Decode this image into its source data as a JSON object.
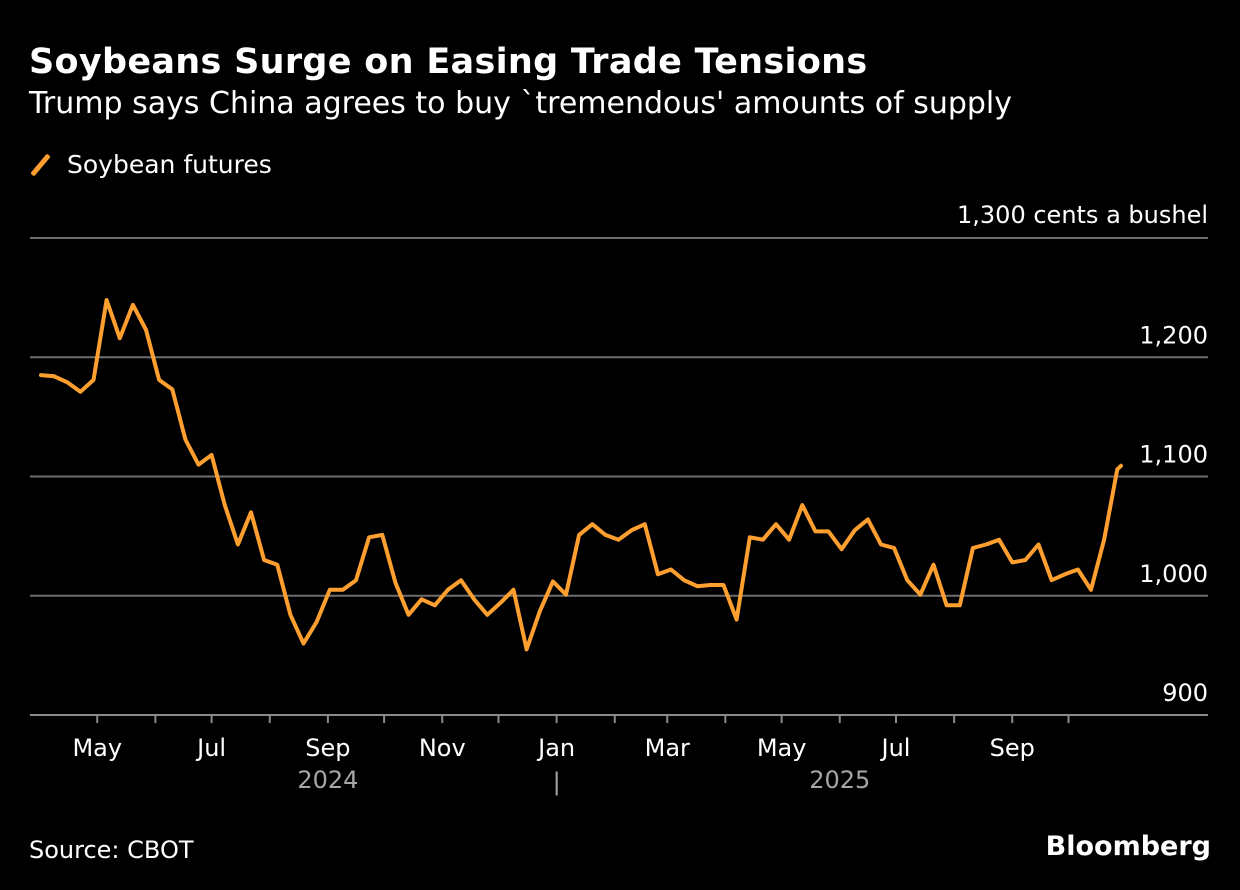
{
  "title": "Soybeans Surge on Easing Trade Tensions",
  "subtitle": "Trump says China agrees to buy `tremendous' amounts of supply",
  "source": "Source: CBOT",
  "logo": "Bloomberg",
  "colors": {
    "series": "#ff9f2f",
    "background": "#000000",
    "grid": "#6e6e6e",
    "text": "#ffffff",
    "year_label": "#a6a6a6"
  },
  "chart_data": {
    "type": "line",
    "legend": {
      "position": "top-left",
      "entries": [
        "Soybean futures"
      ]
    },
    "y_unit_label": "1,300 cents a bushel",
    "ylim": [
      900,
      1300
    ],
    "y_ticks": [
      {
        "value": 1300,
        "label": "1,300"
      },
      {
        "value": 1200,
        "label": "1,200"
      },
      {
        "value": 1100,
        "label": "1,100"
      },
      {
        "value": 1000,
        "label": "1,000"
      },
      {
        "value": 900,
        "label": "900"
      }
    ],
    "grid": true,
    "x_ticks": [
      {
        "date": "2024-05-01",
        "label": "May"
      },
      {
        "date": "2024-06-01",
        "label": ""
      },
      {
        "date": "2024-07-01",
        "label": "Jul"
      },
      {
        "date": "2024-08-01",
        "label": ""
      },
      {
        "date": "2024-09-01",
        "label": "Sep"
      },
      {
        "date": "2024-10-01",
        "label": ""
      },
      {
        "date": "2024-11-01",
        "label": "Nov"
      },
      {
        "date": "2024-12-01",
        "label": ""
      },
      {
        "date": "2025-01-01",
        "label": "Jan"
      },
      {
        "date": "2025-02-01",
        "label": ""
      },
      {
        "date": "2025-03-01",
        "label": "Mar"
      },
      {
        "date": "2025-04-01",
        "label": ""
      },
      {
        "date": "2025-05-01",
        "label": "May"
      },
      {
        "date": "2025-06-01",
        "label": ""
      },
      {
        "date": "2025-07-01",
        "label": "Jul"
      },
      {
        "date": "2025-08-01",
        "label": ""
      },
      {
        "date": "2025-09-01",
        "label": "Sep"
      },
      {
        "date": "2025-10-01",
        "label": ""
      }
    ],
    "year_labels": [
      {
        "label": "2024",
        "date": "2024-09-01"
      },
      {
        "label": "2025",
        "date": "2025-06-01"
      }
    ],
    "year_separator": {
      "label": "|",
      "date": "2025-01-01"
    },
    "series": [
      {
        "name": "Soybean futures",
        "dates": [
          "2024-04-01",
          "2024-04-08",
          "2024-04-15",
          "2024-04-22",
          "2024-04-29",
          "2024-05-06",
          "2024-05-13",
          "2024-05-20",
          "2024-05-27",
          "2024-06-03",
          "2024-06-10",
          "2024-06-17",
          "2024-06-24",
          "2024-07-01",
          "2024-07-08",
          "2024-07-15",
          "2024-07-22",
          "2024-07-29",
          "2024-08-05",
          "2024-08-12",
          "2024-08-19",
          "2024-08-26",
          "2024-09-02",
          "2024-09-09",
          "2024-09-16",
          "2024-09-23",
          "2024-09-30",
          "2024-10-07",
          "2024-10-14",
          "2024-10-21",
          "2024-10-28",
          "2024-11-04",
          "2024-11-11",
          "2024-11-18",
          "2024-11-25",
          "2024-12-02",
          "2024-12-09",
          "2024-12-16",
          "2024-12-23",
          "2024-12-30",
          "2025-01-06",
          "2025-01-13",
          "2025-01-20",
          "2025-01-27",
          "2025-02-03",
          "2025-02-10",
          "2025-02-17",
          "2025-02-24",
          "2025-03-03",
          "2025-03-10",
          "2025-03-17",
          "2025-03-24",
          "2025-03-31",
          "2025-04-07",
          "2025-04-14",
          "2025-04-21",
          "2025-04-28",
          "2025-05-05",
          "2025-05-12",
          "2025-05-19",
          "2025-05-26",
          "2025-06-02",
          "2025-06-09",
          "2025-06-16",
          "2025-06-23",
          "2025-06-30",
          "2025-07-07",
          "2025-07-14",
          "2025-07-21",
          "2025-07-28",
          "2025-08-04",
          "2025-08-11",
          "2025-08-18",
          "2025-08-25",
          "2025-09-01",
          "2025-09-08",
          "2025-09-15",
          "2025-09-22",
          "2025-09-29",
          "2025-10-06",
          "2025-10-13",
          "2025-10-20",
          "2025-10-27",
          "2025-10-29"
        ],
        "values": [
          1185,
          1184,
          1179,
          1171,
          1181,
          1248,
          1216,
          1244,
          1223,
          1181,
          1173,
          1131,
          1110,
          1118,
          1076,
          1043,
          1070,
          1030,
          1026,
          984,
          960,
          978,
          1005,
          1005,
          1013,
          1049,
          1051,
          1011,
          984,
          997,
          992,
          1005,
          1013,
          997,
          984,
          994,
          1005,
          955,
          987,
          1012,
          1001,
          1051,
          1060,
          1051,
          1047,
          1055,
          1060,
          1018,
          1022,
          1013,
          1008,
          1009,
          1009,
          980,
          1049,
          1047,
          1060,
          1047,
          1076,
          1054,
          1054,
          1039,
          1055,
          1064,
          1043,
          1040,
          1013,
          1001,
          1026,
          992,
          992,
          1040,
          1043,
          1047,
          1028,
          1030,
          1043,
          1013,
          1018,
          1022,
          1005,
          1047,
          1106,
          1109
        ]
      }
    ]
  }
}
